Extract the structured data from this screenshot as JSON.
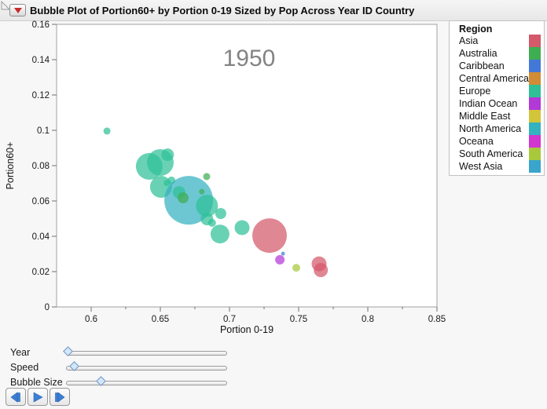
{
  "window": {
    "title": "Bubble Plot of Portion60+ by Portion 0-19 Sized by Pop Across Year ID Country"
  },
  "chart_data": {
    "type": "bubble",
    "year_label": "1950",
    "xlabel": "Portion 0-19",
    "ylabel": "Portion60+",
    "xlim": [
      0.575,
      0.85
    ],
    "ylim": [
      0,
      0.16
    ],
    "xtick_values": [
      0.6,
      0.65,
      0.7,
      0.75,
      0.8,
      0.85
    ],
    "xtick_labels": [
      "0.6",
      "0.65",
      "0.7",
      "0.75",
      "0.8",
      "0.85"
    ],
    "xtick_minor": [
      0.625,
      0.675,
      0.725,
      0.775,
      0.825
    ],
    "ytick_values": [
      0,
      0.02,
      0.04,
      0.06,
      0.08,
      0.1,
      0.12,
      0.14,
      0.16
    ],
    "ytick_labels": [
      "0",
      "0.02",
      "0.04",
      "0.06",
      "0.08",
      "0.1",
      "0.12",
      "0.14",
      "0.16"
    ],
    "grid": false,
    "bubble_opacity": 0.72,
    "points": [
      {
        "region": "Europe",
        "x": 0.6114,
        "y": 0.0996,
        "r": 4.5
      },
      {
        "region": "Europe",
        "x": 0.642,
        "y": 0.0796,
        "r": 17
      },
      {
        "region": "Europe",
        "x": 0.65,
        "y": 0.0818,
        "r": 17
      },
      {
        "region": "Europe",
        "x": 0.6553,
        "y": 0.0862,
        "r": 8
      },
      {
        "region": "Europe",
        "x": 0.6505,
        "y": 0.068,
        "r": 14
      },
      {
        "region": "Europe",
        "x": 0.6546,
        "y": 0.0702,
        "r": 4
      },
      {
        "region": "Europe",
        "x": 0.658,
        "y": 0.0716,
        "r": 5
      },
      {
        "region": "North America",
        "x": 0.6705,
        "y": 0.0604,
        "r": 31
      },
      {
        "region": "Europe",
        "x": 0.6636,
        "y": 0.0649,
        "r": 8
      },
      {
        "region": "Australia",
        "x": 0.6665,
        "y": 0.0618,
        "r": 7
      },
      {
        "region": "Australia",
        "x": 0.68,
        "y": 0.0653,
        "r": 3.5
      },
      {
        "region": "Australia",
        "x": 0.6835,
        "y": 0.0738,
        "r": 4.5
      },
      {
        "region": "Europe",
        "x": 0.6837,
        "y": 0.0573,
        "r": 14
      },
      {
        "region": "Europe",
        "x": 0.6837,
        "y": 0.0498,
        "r": 8
      },
      {
        "region": "Europe",
        "x": 0.6874,
        "y": 0.0476,
        "r": 5
      },
      {
        "region": "Europe",
        "x": 0.6937,
        "y": 0.0529,
        "r": 7
      },
      {
        "region": "Europe",
        "x": 0.6931,
        "y": 0.0413,
        "r": 12
      },
      {
        "region": "Europe",
        "x": 0.7091,
        "y": 0.0449,
        "r": 9.5
      },
      {
        "region": "Asia",
        "x": 0.729,
        "y": 0.0404,
        "r": 22
      },
      {
        "region": "Caribbean",
        "x": 0.7387,
        "y": 0.0302,
        "r": 2.5
      },
      {
        "region": "Indian Ocean",
        "x": 0.7364,
        "y": 0.0267,
        "r": 6
      },
      {
        "region": "South America",
        "x": 0.7483,
        "y": 0.0222,
        "r": 5
      },
      {
        "region": "Asia",
        "x": 0.7648,
        "y": 0.0244,
        "r": 9.5
      },
      {
        "region": "Asia",
        "x": 0.766,
        "y": 0.0209,
        "r": 9
      }
    ]
  },
  "legend": {
    "title": "Region",
    "items": [
      {
        "label": "Asia",
        "color": "#d4596b"
      },
      {
        "label": "Australia",
        "color": "#3fad52"
      },
      {
        "label": "Caribbean",
        "color": "#4478d8"
      },
      {
        "label": "Central America",
        "color": "#d28c35"
      },
      {
        "label": "Europe",
        "color": "#2fc098"
      },
      {
        "label": "Indian Ocean",
        "color": "#b338d8"
      },
      {
        "label": "Middle East",
        "color": "#d3c53a"
      },
      {
        "label": "North America",
        "color": "#35b2c0"
      },
      {
        "label": "Oceana",
        "color": "#d136d1"
      },
      {
        "label": "South America",
        "color": "#a9c93c"
      },
      {
        "label": "West Asia",
        "color": "#3aa5cc"
      }
    ]
  },
  "controls": {
    "sliders": [
      {
        "label": "Year",
        "value_pct": 1
      },
      {
        "label": "Speed",
        "value_pct": 5
      },
      {
        "label": "Bubble Size",
        "value_pct": 22
      }
    ],
    "buttons": [
      {
        "name": "step-back"
      },
      {
        "name": "play"
      },
      {
        "name": "step-forward"
      }
    ]
  },
  "colors": {
    "year_label": "#838383",
    "frame": "#a0a0a0",
    "tick": "#707070",
    "tick_text": "#1a1a1a",
    "button_icon": "#3b7fd4"
  }
}
